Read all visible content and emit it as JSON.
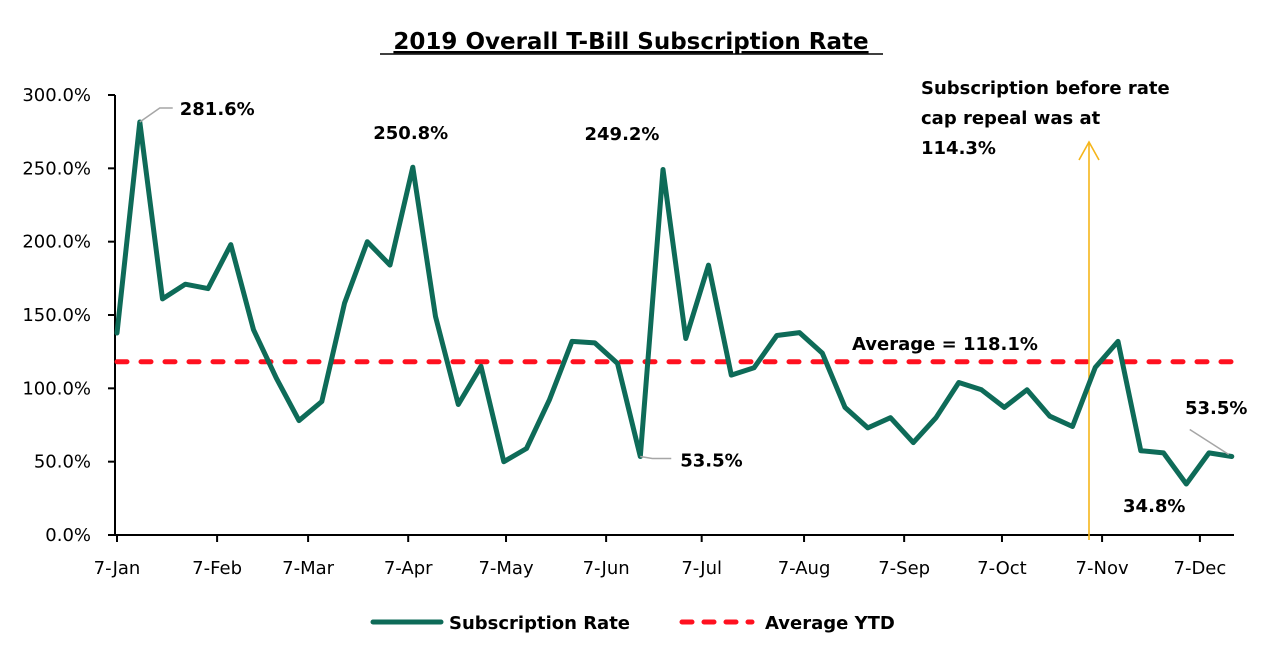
{
  "chart_data": {
    "type": "line",
    "title": "2019 Overall T-Bill Subscription Rate",
    "xlabel": "",
    "ylabel": "",
    "ylim": [
      0,
      300
    ],
    "yticks": [
      0,
      50,
      100,
      150,
      200,
      250,
      300
    ],
    "ytick_labels": [
      "0.0%",
      "50.0%",
      "100.0%",
      "150.0%",
      "200.0%",
      "250.0%",
      "300.0%"
    ],
    "xtick_labels": [
      "7-Jan",
      "7-Feb",
      "7-Mar",
      "7-Apr",
      "7-May",
      "7-Jun",
      "7-Jul",
      "7-Aug",
      "7-Sep",
      "7-Oct",
      "7-Nov",
      "7-Dec"
    ],
    "xtick_week_index": [
      0,
      4.4,
      8.4,
      12.8,
      17.1,
      21.5,
      25.7,
      30.2,
      34.6,
      38.9,
      43.3,
      47.6
    ],
    "grid": false,
    "legend_position": "bottom",
    "colors": {
      "subscription": "#0e6b58",
      "average": "#ff101f",
      "annotation_arrow": "#f5b51a",
      "leader": "#a6a6a6"
    },
    "series": [
      {
        "name": "Subscription Rate",
        "style": "solid",
        "values": [
          137.7,
          281.6,
          161,
          171,
          168,
          198,
          140,
          107,
          78,
          91,
          158,
          200,
          184,
          250.8,
          149,
          89,
          115,
          50,
          59,
          92,
          132,
          131,
          117,
          53.5,
          249.2,
          134,
          184,
          109,
          114,
          136,
          138,
          124,
          87,
          73,
          80,
          63,
          80,
          104,
          99,
          87,
          99,
          81,
          74,
          114.3,
          132,
          57.5,
          56,
          34.8,
          56,
          53.5
        ]
      },
      {
        "name": "Average YTD",
        "style": "dashed",
        "constant": 118.1
      }
    ],
    "annotations": [
      {
        "text": "281.6%",
        "point_index": 1,
        "leader": true
      },
      {
        "text": "250.8%",
        "point_index": 13,
        "leader": false
      },
      {
        "text": "249.2%",
        "point_index": 24,
        "leader": false
      },
      {
        "text": "53.5%",
        "point_index": 23,
        "leader": true
      },
      {
        "text": "Average = 118.1%",
        "target": "average"
      },
      {
        "text": "34.8%",
        "point_index": 47,
        "leader": false
      },
      {
        "text": "53.5%",
        "point_index": 49,
        "leader": true
      },
      {
        "text_lines": [
          "Subscription before rate",
          "cap repeal was at",
          "114.3%"
        ],
        "point_index": 43,
        "arrow": true
      }
    ]
  },
  "legend": {
    "items": [
      {
        "label": "Subscription Rate"
      },
      {
        "label": "Average YTD"
      }
    ]
  }
}
